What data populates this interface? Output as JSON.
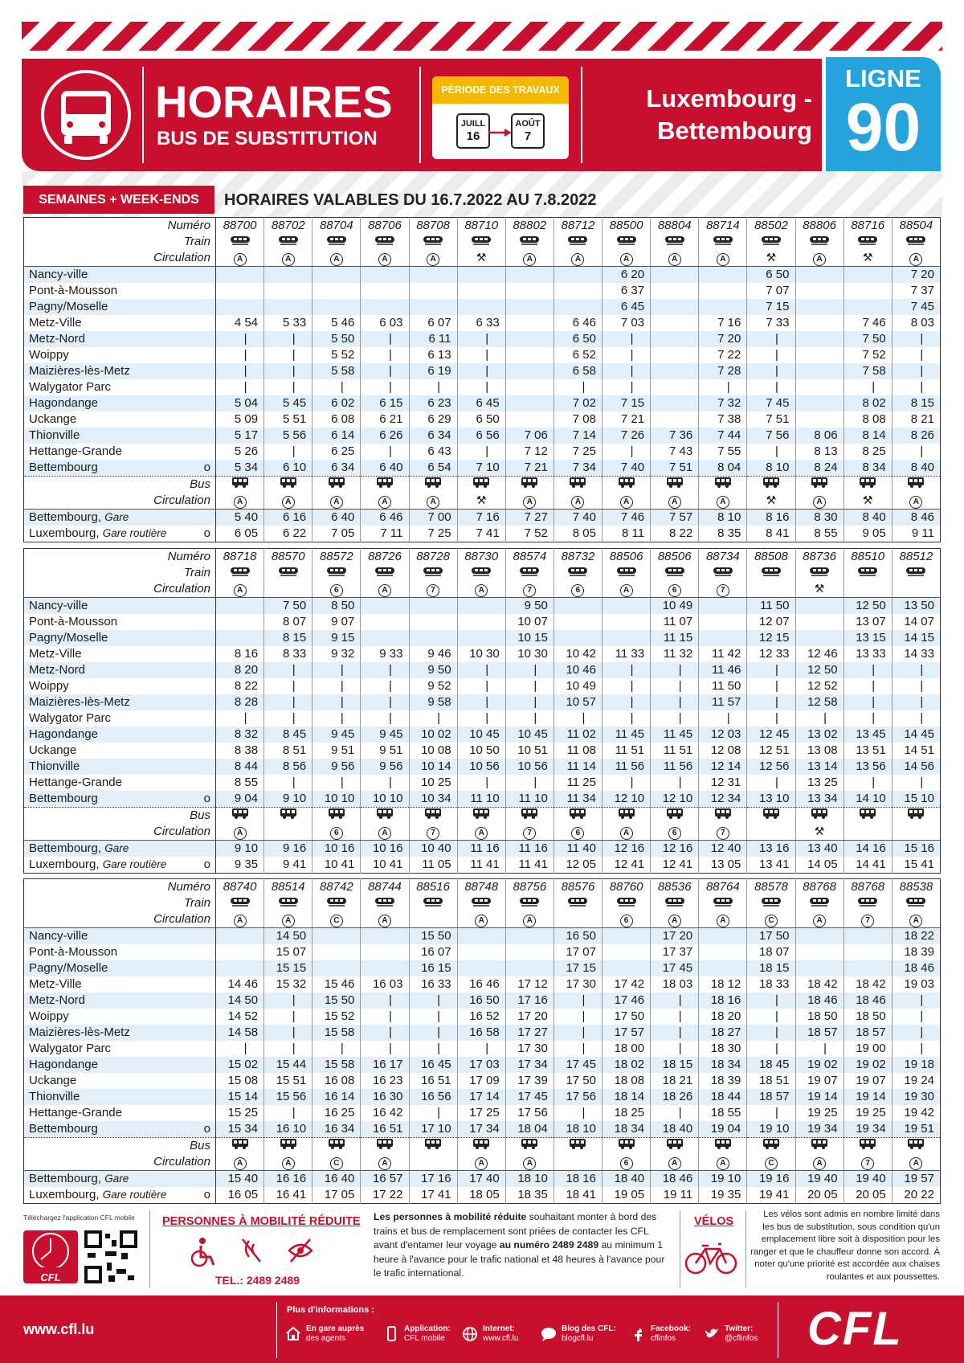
{
  "header": {
    "title": "HORAIRES",
    "subtitle": "BUS DE SUBSTITUTION",
    "period_label": "PÉRIODE DES TRAVAUX",
    "from_month": "JUILL",
    "from_day": "16",
    "to_month": "AOÛT",
    "to_day": "7",
    "route_line1": "Luxembourg -",
    "route_line2": "Bettembourg",
    "line_label": "LIGNE",
    "line_number": "90"
  },
  "validity": {
    "tab": "SEMAINES + WEEK-ENDS",
    "text": "HORAIRES VALABLES DU 16.7.2022 AU 7.8.2022"
  },
  "row_labels": {
    "number": "Numéro",
    "train": "Train",
    "circulation": "Circulation",
    "bus": "Bus"
  },
  "stations": [
    {
      "name": "Nancy-ville"
    },
    {
      "name": "Pont-à-Mousson"
    },
    {
      "name": "Pagny/Moselle"
    },
    {
      "name": "Metz-Ville"
    },
    {
      "name": "Metz-Nord"
    },
    {
      "name": "Woippy"
    },
    {
      "name": "Maizières-lès-Metz"
    },
    {
      "name": "Walygator Parc"
    },
    {
      "name": "Hagondange"
    },
    {
      "name": "Uckange"
    },
    {
      "name": "Thionville"
    },
    {
      "name": "Hettange-Grande"
    },
    {
      "name": "Bettembourg",
      "mark": "o"
    }
  ],
  "bus_stops": [
    {
      "name": "Bettembourg,",
      "sub": "Gare"
    },
    {
      "name": "Luxembourg,",
      "sub": "Gare routière",
      "mark": "o"
    }
  ],
  "tables": [
    {
      "numbers": [
        "88700",
        "88702",
        "88704",
        "88706",
        "88708",
        "88710",
        "88802",
        "88712",
        "88500",
        "88804",
        "88714",
        "88502",
        "88806",
        "88716",
        "88504"
      ],
      "train_circulation": [
        "A",
        "A",
        "A",
        "A",
        "A",
        "⚒",
        "A",
        "A",
        "A",
        "A",
        "A",
        "⚒",
        "A",
        "⚒",
        "A"
      ],
      "times": [
        [
          null,
          null,
          null,
          null,
          null,
          null,
          null,
          null,
          "6 20",
          null,
          null,
          "6 50",
          null,
          null,
          "7 20"
        ],
        [
          null,
          null,
          null,
          null,
          null,
          null,
          null,
          null,
          "6 37",
          null,
          null,
          "7 07",
          null,
          null,
          "7 37"
        ],
        [
          null,
          null,
          null,
          null,
          null,
          null,
          null,
          null,
          "6 45",
          null,
          null,
          "7 15",
          null,
          null,
          "7 45"
        ],
        [
          "4 54",
          "5 33",
          "5 46",
          "6 03",
          "6 07",
          "6 33",
          null,
          "6 46",
          "7 03",
          null,
          "7 16",
          "7 33",
          null,
          "7 46",
          "8 03"
        ],
        [
          "|",
          "|",
          "5 50",
          "|",
          "6 11",
          "|",
          null,
          "6 50",
          "|",
          null,
          "7 20",
          "|",
          null,
          "7 50",
          "|"
        ],
        [
          "|",
          "|",
          "5 52",
          "|",
          "6 13",
          "|",
          null,
          "6 52",
          "|",
          null,
          "7 22",
          "|",
          null,
          "7 52",
          "|"
        ],
        [
          "|",
          "|",
          "5 58",
          "|",
          "6 19",
          "|",
          null,
          "6 58",
          "|",
          null,
          "7 28",
          "|",
          null,
          "7 58",
          "|"
        ],
        [
          "|",
          "|",
          "|",
          "|",
          "|",
          "|",
          null,
          "|",
          "|",
          null,
          "|",
          "|",
          null,
          "|",
          "|"
        ],
        [
          "5 04",
          "5 45",
          "6 02",
          "6 15",
          "6 23",
          "6 45",
          null,
          "7 02",
          "7 15",
          null,
          "7 32",
          "7 45",
          null,
          "8 02",
          "8 15"
        ],
        [
          "5 09",
          "5 51",
          "6 08",
          "6 21",
          "6 29",
          "6 50",
          null,
          "7 08",
          "7 21",
          null,
          "7 38",
          "7 51",
          null,
          "8 08",
          "8 21"
        ],
        [
          "5 17",
          "5 56",
          "6 14",
          "6 26",
          "6 34",
          "6 56",
          "7 06",
          "7 14",
          "7 26",
          "7 36",
          "7 44",
          "7 56",
          "8 06",
          "8 14",
          "8 26"
        ],
        [
          "5 26",
          "|",
          "6 25",
          "|",
          "6 43",
          "|",
          "7 12",
          "7 25",
          "|",
          "7 43",
          "7 55",
          "|",
          "8 13",
          "8 25",
          "|"
        ],
        [
          "5 34",
          "6 10",
          "6 34",
          "6 40",
          "6 54",
          "7 10",
          "7 21",
          "7 34",
          "7 40",
          "7 51",
          "8 04",
          "8 10",
          "8 24",
          "8 34",
          "8 40"
        ]
      ],
      "bus_circulation": [
        "A",
        "A",
        "A",
        "A",
        "A",
        "⚒",
        "A",
        "A",
        "A",
        "A",
        "A",
        "⚒",
        "A",
        "⚒",
        "A"
      ],
      "bus_times": [
        [
          "5 40",
          "6 16",
          "6 40",
          "6 46",
          "7 00",
          "7 16",
          "7 27",
          "7 40",
          "7 46",
          "7 57",
          "8 10",
          "8 16",
          "8 30",
          "8 40",
          "8 46"
        ],
        [
          "6 05",
          "6 22",
          "7 05",
          "7 11",
          "7 25",
          "7 41",
          "7 52",
          "8 05",
          "8 11",
          "8 22",
          "8 35",
          "8 41",
          "8 55",
          "9 05",
          "9 11"
        ]
      ]
    },
    {
      "numbers": [
        "88718",
        "88570",
        "88572",
        "88726",
        "88728",
        "88730",
        "88574",
        "88732",
        "88506",
        "88506",
        "88734",
        "88508",
        "88736",
        "88510",
        "88512"
      ],
      "train_circulation": [
        "A",
        null,
        "6",
        "A",
        "7",
        "A",
        "7",
        "6",
        "A",
        "6",
        "7",
        null,
        "⚒",
        null,
        null
      ],
      "times": [
        [
          null,
          "7 50",
          "8 50",
          null,
          null,
          null,
          "9 50",
          null,
          null,
          "10 49",
          null,
          "11 50",
          null,
          "12 50",
          "13 50"
        ],
        [
          null,
          "8 07",
          "9 07",
          null,
          null,
          null,
          "10 07",
          null,
          null,
          "11 07",
          null,
          "12 07",
          null,
          "13 07",
          "14 07"
        ],
        [
          null,
          "8 15",
          "9 15",
          null,
          null,
          null,
          "10 15",
          null,
          null,
          "11 15",
          null,
          "12 15",
          null,
          "13 15",
          "14 15"
        ],
        [
          "8 16",
          "8 33",
          "9 32",
          "9 33",
          "9 46",
          "10 30",
          "10 30",
          "10 42",
          "11 33",
          "11 32",
          "11 42",
          "12 33",
          "12 46",
          "13 33",
          "14 33"
        ],
        [
          "8 20",
          "|",
          "|",
          "|",
          "9 50",
          "|",
          "|",
          "10 46",
          "|",
          "|",
          "11 46",
          "|",
          "12 50",
          "|",
          "|"
        ],
        [
          "8 22",
          "|",
          "|",
          "|",
          "9 52",
          "|",
          "|",
          "10 49",
          "|",
          "|",
          "11 50",
          "|",
          "12 52",
          "|",
          "|"
        ],
        [
          "8 28",
          "|",
          "|",
          "|",
          "9 58",
          "|",
          "|",
          "10 57",
          "|",
          "|",
          "11 57",
          "|",
          "12 58",
          "|",
          "|"
        ],
        [
          "|",
          "|",
          "|",
          "|",
          "|",
          "|",
          "|",
          "|",
          "|",
          "|",
          "|",
          "|",
          "|",
          "|",
          "|"
        ],
        [
          "8 32",
          "8 45",
          "9 45",
          "9 45",
          "10 02",
          "10 45",
          "10 45",
          "11 02",
          "11 45",
          "11 45",
          "12 03",
          "12 45",
          "13 02",
          "13 45",
          "14 45"
        ],
        [
          "8 38",
          "8 51",
          "9 51",
          "9 51",
          "10 08",
          "10 50",
          "10 51",
          "11 08",
          "11 51",
          "11 51",
          "12 08",
          "12 51",
          "13 08",
          "13 51",
          "14 51"
        ],
        [
          "8 44",
          "8 56",
          "9 56",
          "9 56",
          "10 14",
          "10 56",
          "10 56",
          "11 14",
          "11 56",
          "11 56",
          "12 14",
          "12 56",
          "13 14",
          "13 56",
          "14 56"
        ],
        [
          "8 55",
          "|",
          "|",
          "|",
          "10 25",
          "|",
          "|",
          "11 25",
          "|",
          "|",
          "12 31",
          "|",
          "13 25",
          "|",
          "|"
        ],
        [
          "9 04",
          "9 10",
          "10 10",
          "10 10",
          "10 34",
          "11 10",
          "11 10",
          "11 34",
          "12 10",
          "12 10",
          "12 34",
          "13 10",
          "13 34",
          "14 10",
          "15 10"
        ]
      ],
      "bus_circulation": [
        "A",
        null,
        "6",
        "A",
        "7",
        "A",
        "7",
        "6",
        "A",
        "6",
        "7",
        null,
        "⚒",
        null,
        null
      ],
      "bus_times": [
        [
          "9 10",
          "9 16",
          "10 16",
          "10 16",
          "10 40",
          "11 16",
          "11 16",
          "11 40",
          "12 16",
          "12 16",
          "12 40",
          "13 16",
          "13 40",
          "14 16",
          "15 16"
        ],
        [
          "9 35",
          "9 41",
          "10 41",
          "10 41",
          "11 05",
          "11 41",
          "11 41",
          "12 05",
          "12 41",
          "12 41",
          "13 05",
          "13 41",
          "14 05",
          "14 41",
          "15 41"
        ]
      ]
    },
    {
      "numbers": [
        "88740",
        "88514",
        "88742",
        "88744",
        "88516",
        "88748",
        "88756",
        "88576",
        "88760",
        "88536",
        "88764",
        "88578",
        "88768",
        "88768",
        "88538"
      ],
      "train_circulation": [
        "A",
        "A",
        "C",
        "A",
        null,
        "A",
        "A",
        null,
        "6",
        "A",
        "A",
        "C",
        "A",
        "7",
        "A"
      ],
      "times": [
        [
          null,
          "14 50",
          null,
          null,
          "15 50",
          null,
          null,
          "16 50",
          null,
          "17 20",
          null,
          "17 50",
          null,
          null,
          "18 22"
        ],
        [
          null,
          "15 07",
          null,
          null,
          "16 07",
          null,
          null,
          "17 07",
          null,
          "17 37",
          null,
          "18 07",
          null,
          null,
          "18 39"
        ],
        [
          null,
          "15 15",
          null,
          null,
          "16 15",
          null,
          null,
          "17 15",
          null,
          "17 45",
          null,
          "18 15",
          null,
          null,
          "18 46"
        ],
        [
          "14 46",
          "15 32",
          "15 46",
          "16 03",
          "16 33",
          "16 46",
          "17 12",
          "17 30",
          "17 42",
          "18 03",
          "18 12",
          "18 33",
          "18 42",
          "18 42",
          "19 03"
        ],
        [
          "14 50",
          "|",
          "15 50",
          "|",
          "|",
          "16 50",
          "17 16",
          "|",
          "17 46",
          "|",
          "18 16",
          "|",
          "18 46",
          "18 46",
          "|"
        ],
        [
          "14 52",
          "|",
          "15 52",
          "|",
          "|",
          "16 52",
          "17 20",
          "|",
          "17 50",
          "|",
          "18 20",
          "|",
          "18 50",
          "18 50",
          "|"
        ],
        [
          "14 58",
          "|",
          "15 58",
          "|",
          "|",
          "16 58",
          "17 27",
          "|",
          "17 57",
          "|",
          "18 27",
          "|",
          "18 57",
          "18 57",
          "|"
        ],
        [
          "|",
          "|",
          "|",
          "|",
          "|",
          "|",
          "17 30",
          "|",
          "18 00",
          "|",
          "18 30",
          "|",
          "|",
          "19 00",
          "|"
        ],
        [
          "15 02",
          "15 44",
          "15 58",
          "16 17",
          "16 45",
          "17 03",
          "17 34",
          "17 45",
          "18 02",
          "18 15",
          "18 34",
          "18 45",
          "19 02",
          "19 02",
          "19 18"
        ],
        [
          "15 08",
          "15 51",
          "16 08",
          "16 23",
          "16 51",
          "17 09",
          "17 39",
          "17 50",
          "18 08",
          "18 21",
          "18 39",
          "18 51",
          "19 07",
          "19 07",
          "19 24"
        ],
        [
          "15 14",
          "15 56",
          "16 14",
          "16 30",
          "16 56",
          "17 14",
          "17 45",
          "17 56",
          "18 14",
          "18 26",
          "18 44",
          "18 57",
          "19 14",
          "19 14",
          "19 30"
        ],
        [
          "15 25",
          "|",
          "16 25",
          "16 42",
          "|",
          "17 25",
          "17 56",
          "|",
          "18 25",
          "|",
          "18 55",
          "|",
          "19 25",
          "19 25",
          "19 42"
        ],
        [
          "15 34",
          "16 10",
          "16 34",
          "16 51",
          "17 10",
          "17 34",
          "18 04",
          "18 10",
          "18 34",
          "18 40",
          "19 04",
          "19 10",
          "19 34",
          "19 34",
          "19 51"
        ]
      ],
      "bus_circulation": [
        "A",
        "A",
        "C",
        "A",
        null,
        "A",
        "A",
        null,
        "6",
        "A",
        "A",
        "C",
        "A",
        "7",
        "A"
      ],
      "bus_times": [
        [
          "15 40",
          "16 16",
          "16 40",
          "16 57",
          "17 16",
          "17 40",
          "18 10",
          "18 16",
          "18 40",
          "18 46",
          "19 10",
          "19 16",
          "19 40",
          "19 40",
          "19 57"
        ],
        [
          "16 05",
          "16 41",
          "17 05",
          "17 22",
          "17 41",
          "18 05",
          "18 35",
          "18 41",
          "19 05",
          "19 11",
          "19 35",
          "19 41",
          "20 05",
          "20 05",
          "20 22"
        ]
      ]
    }
  ],
  "footer": {
    "app_text": "Téléchargez l'application CFL mobile",
    "app_logo": "CFL",
    "prm_title": "PERSONNES À MOBILITÉ RÉDUITE",
    "prm_phone": "TEL.: 2489 2489",
    "prm_text": [
      {
        "text": "Les personnes à mobilité réduite",
        "bold": true
      },
      {
        "text": " souhaitant monter à bord des trains et bus de remplacement sont priées de contacter les CFL avant d'entamer leur voyage "
      },
      {
        "text": "au numéro 2489 2489",
        "bold": true
      },
      {
        "text": " au minimum 1 heure à l'avance pour le trafic national et 48 heures à l'avance pour le trafic international."
      }
    ],
    "bikes_title": "VÉLOS",
    "bikes_text": "Les vélos sont admis en nombre limité dans les bus de substitution, sous condition qu'un emplacement libre soit à disposition pour les ranger et que le chauffeur donne son accord. À noter qu'une priorité est accordée aux chaises roulantes et aux poussettes."
  },
  "bottom_bar": {
    "website": "www.cfl.lu",
    "info_title": "Plus d'informations :",
    "items": [
      {
        "label": "En gare auprès",
        "value": "des agents"
      },
      {
        "label": "Application:",
        "value": "CFL mobile"
      },
      {
        "label": "Internet:",
        "value": "www.cfl.lu"
      },
      {
        "label": "Blog des CFL:",
        "value": "blogcfl.lu"
      },
      {
        "label": "Facebook:",
        "value": "cflinfos"
      },
      {
        "label": "Twitter:",
        "value": "@cflinfos"
      }
    ],
    "logo": "CFL"
  }
}
